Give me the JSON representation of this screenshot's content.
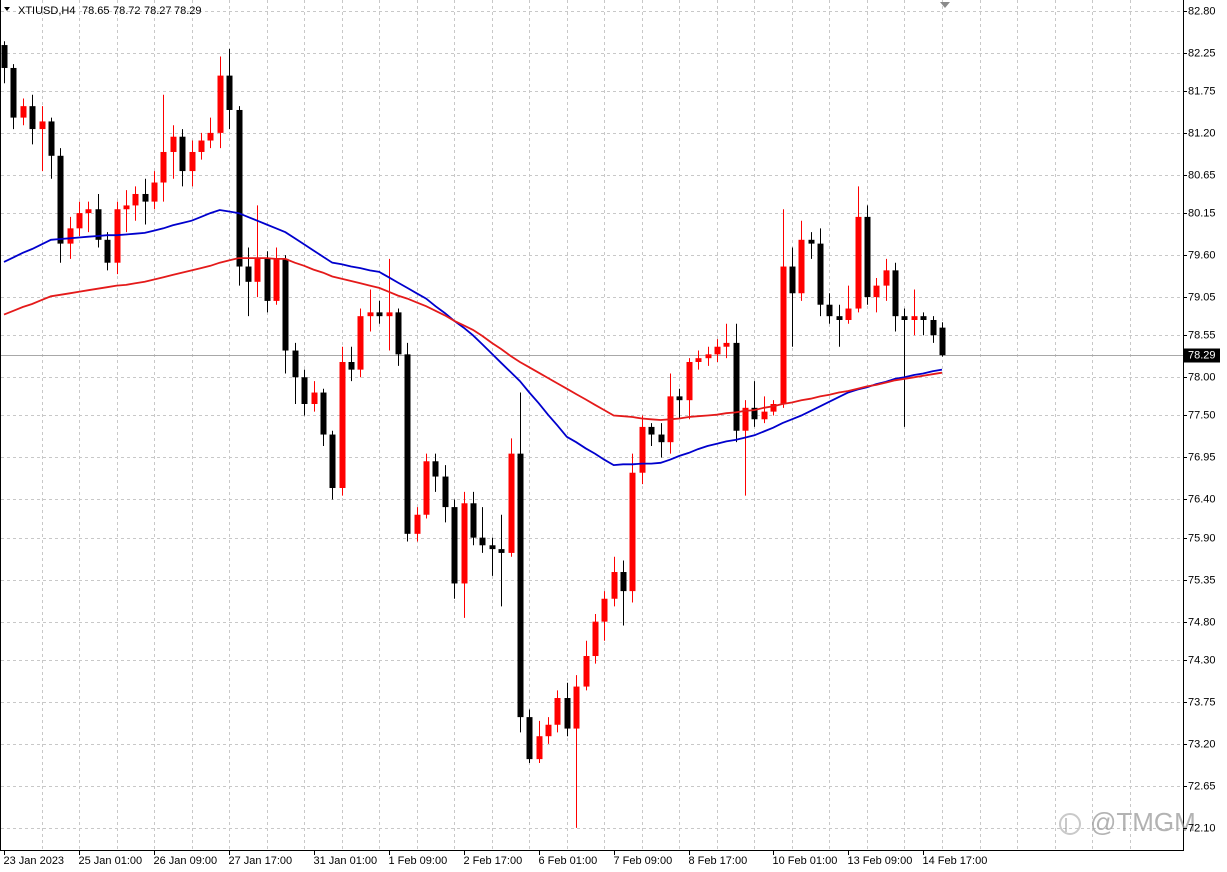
{
  "chart_data": {
    "type": "candlestick",
    "title": "XTIUSD,H4",
    "watermark": "@TMGM",
    "up_color": "#ff0000",
    "down_color": "#000000",
    "grid": true,
    "ylim": [
      71.81,
      82.94
    ],
    "yticks": [
      {
        "value": 82.8,
        "label": "82.80"
      },
      82.25,
      81.75,
      {
        "value": 81.2,
        "label": "81.20"
      },
      80.65,
      80.15,
      {
        "value": 79.6,
        "label": "79.60"
      },
      79.05,
      78.55,
      {
        "value": 78.0,
        "label": "78.00"
      },
      {
        "value": 77.5,
        "label": "77.50"
      },
      76.95,
      {
        "value": 76.4,
        "label": "76.40"
      },
      {
        "value": 75.9,
        "label": "75.90"
      },
      75.35,
      {
        "value": 74.8,
        "label": "74.80"
      },
      {
        "value": 74.3,
        "label": "74.30"
      },
      73.75,
      {
        "value": 73.2,
        "label": "73.20"
      },
      72.65,
      {
        "value": 72.1,
        "label": "72.10"
      }
    ],
    "categories": [
      "23 Jan 2023",
      null,
      null,
      null,
      null,
      null,
      null,
      null,
      "25 Jan 01:00",
      null,
      null,
      null,
      null,
      null,
      null,
      null,
      "26 Jan 09:00",
      null,
      null,
      null,
      null,
      null,
      null,
      null,
      "27 Jan 17:00",
      null,
      null,
      null,
      null,
      null,
      null,
      null,
      null,
      "31 Jan 01:00",
      null,
      null,
      null,
      null,
      null,
      null,
      null,
      "1 Feb 09:00",
      null,
      null,
      null,
      null,
      null,
      null,
      null,
      "2 Feb 17:00",
      null,
      null,
      null,
      null,
      null,
      null,
      null,
      "6 Feb 01:00",
      null,
      null,
      null,
      null,
      null,
      null,
      null,
      "7 Feb 09:00",
      null,
      null,
      null,
      null,
      null,
      null,
      null,
      "8 Feb 17:00",
      null,
      null,
      null,
      null,
      null,
      null,
      null,
      null,
      "10 Feb 01:00",
      null,
      null,
      null,
      null,
      null,
      null,
      null,
      "13 Feb 09:00",
      null,
      null,
      null,
      null,
      null,
      null,
      null,
      "14 Feb 17:00",
      null,
      null
    ],
    "open": [
      82.35,
      82.05,
      81.4,
      81.55,
      81.25,
      81.35,
      80.9,
      79.75,
      79.95,
      80.15,
      80.2,
      79.8,
      79.5,
      80.2,
      80.25,
      80.4,
      80.3,
      80.55,
      80.95,
      81.15,
      80.7,
      80.95,
      81.1,
      81.2,
      81.95,
      81.5,
      79.45,
      79.25,
      79.55,
      79.0,
      79.55,
      78.35,
      78.0,
      77.65,
      77.8,
      77.25,
      76.55,
      78.2,
      78.1,
      78.8,
      78.85,
      78.8,
      78.85,
      78.3,
      75.95,
      76.2,
      76.9,
      76.7,
      76.3,
      75.3,
      76.35,
      75.9,
      75.8,
      75.75,
      75.7,
      77.0,
      73.55,
      73.0,
      73.3,
      73.45,
      73.8,
      73.4,
      73.95,
      74.35,
      74.8,
      75.1,
      75.45,
      75.2,
      76.75,
      77.35,
      77.25,
      77.15,
      77.75,
      77.7,
      78.2,
      78.25,
      78.3,
      78.4,
      78.45,
      77.3,
      77.6,
      77.45,
      77.55,
      77.65,
      79.45,
      79.1,
      79.8,
      79.75,
      78.95,
      78.8,
      78.75,
      78.9,
      80.1,
      79.05,
      79.2,
      79.4,
      78.8,
      78.75,
      78.8,
      78.75,
      78.65
    ],
    "high": [
      82.4,
      82.1,
      81.65,
      81.7,
      81.55,
      81.4,
      81.0,
      80.1,
      80.3,
      80.3,
      80.4,
      79.9,
      80.3,
      80.45,
      80.5,
      80.6,
      80.7,
      81.7,
      81.3,
      81.25,
      81.1,
      81.2,
      81.4,
      82.2,
      82.3,
      81.55,
      79.7,
      80.25,
      79.65,
      79.7,
      79.6,
      78.45,
      78.1,
      77.95,
      77.85,
      77.3,
      78.4,
      78.4,
      78.9,
      79.15,
      79.0,
      79.55,
      78.9,
      78.45,
      76.3,
      77.0,
      77.0,
      76.85,
      76.4,
      76.5,
      76.5,
      76.3,
      75.9,
      76.2,
      77.2,
      77.8,
      73.65,
      73.5,
      73.55,
      73.9,
      74.0,
      74.1,
      74.55,
      74.9,
      75.2,
      75.65,
      75.6,
      77.0,
      77.5,
      77.4,
      77.4,
      78.05,
      77.85,
      78.25,
      78.35,
      78.4,
      78.5,
      78.7,
      78.7,
      77.7,
      77.95,
      77.75,
      77.7,
      80.2,
      79.7,
      80.05,
      79.9,
      79.95,
      79.1,
      78.95,
      79.2,
      80.5,
      80.25,
      79.3,
      79.55,
      79.5,
      78.9,
      79.15,
      78.85,
      78.8,
      78.72
    ],
    "low": [
      81.85,
      81.25,
      81.3,
      81.05,
      80.7,
      80.6,
      79.5,
      79.55,
      79.85,
      79.9,
      79.7,
      79.4,
      79.35,
      79.9,
      80.05,
      80.0,
      80.2,
      80.3,
      80.6,
      80.5,
      80.5,
      80.85,
      81.0,
      81.0,
      81.25,
      79.2,
      78.8,
      79.05,
      78.85,
      78.95,
      78.05,
      77.65,
      77.5,
      77.55,
      77.1,
      76.4,
      76.45,
      77.95,
      78.0,
      78.6,
      78.7,
      78.35,
      78.15,
      75.85,
      75.85,
      76.15,
      76.5,
      76.1,
      75.1,
      74.85,
      75.8,
      75.7,
      75.4,
      75.0,
      75.65,
      73.35,
      72.95,
      72.95,
      73.2,
      73.35,
      73.3,
      72.1,
      73.9,
      74.25,
      74.55,
      75.0,
      74.75,
      75.05,
      76.6,
      77.1,
      76.95,
      77.0,
      77.45,
      77.45,
      78.1,
      78.15,
      78.2,
      78.25,
      77.15,
      76.45,
      77.35,
      77.4,
      77.5,
      77.6,
      78.4,
      79.0,
      79.55,
      78.8,
      78.7,
      78.4,
      78.7,
      78.85,
      78.95,
      78.85,
      79.0,
      78.6,
      77.35,
      78.55,
      78.55,
      78.45,
      78.27
    ],
    "close": [
      82.05,
      81.4,
      81.55,
      81.25,
      81.35,
      80.9,
      79.75,
      79.95,
      80.15,
      80.2,
      79.8,
      79.5,
      80.2,
      80.25,
      80.4,
      80.3,
      80.55,
      80.95,
      81.15,
      80.7,
      80.95,
      81.1,
      81.2,
      81.95,
      81.5,
      79.45,
      79.25,
      79.55,
      79.0,
      79.55,
      78.35,
      78.0,
      77.65,
      77.8,
      77.25,
      76.55,
      78.2,
      78.1,
      78.8,
      78.85,
      78.8,
      78.85,
      78.3,
      75.95,
      76.2,
      76.9,
      76.7,
      76.3,
      75.3,
      76.35,
      75.9,
      75.8,
      75.75,
      75.7,
      77.0,
      73.55,
      73.0,
      73.3,
      73.45,
      73.8,
      73.4,
      73.95,
      74.35,
      74.8,
      75.1,
      75.45,
      75.2,
      76.75,
      77.35,
      77.25,
      77.15,
      77.75,
      77.7,
      78.2,
      78.25,
      78.3,
      78.4,
      78.45,
      77.3,
      77.6,
      77.45,
      77.55,
      77.65,
      79.45,
      79.1,
      79.8,
      79.75,
      78.95,
      78.8,
      78.75,
      78.9,
      80.1,
      79.05,
      79.2,
      79.4,
      78.8,
      78.75,
      78.8,
      78.75,
      78.55,
      78.29
    ],
    "series": [
      {
        "color": "#0000cd",
        "values": [
          79.51,
          79.57,
          79.63,
          79.68,
          79.74,
          79.8,
          79.81,
          79.82,
          79.83,
          79.84,
          79.85,
          79.86,
          79.86,
          79.87,
          79.88,
          79.89,
          79.92,
          79.95,
          79.99,
          80.02,
          80.05,
          80.1,
          80.15,
          80.19,
          80.17,
          80.15,
          80.1,
          80.05,
          80.0,
          79.95,
          79.9,
          79.82,
          79.74,
          79.66,
          79.58,
          79.5,
          79.48,
          79.45,
          79.43,
          79.4,
          79.38,
          79.31,
          79.24,
          79.17,
          79.1,
          79.03,
          78.93,
          78.84,
          78.74,
          78.65,
          78.55,
          78.43,
          78.31,
          78.19,
          78.07,
          77.95,
          77.8,
          77.66,
          77.51,
          77.37,
          77.22,
          77.15,
          77.07,
          77.0,
          76.92,
          76.85,
          76.86,
          76.86,
          76.87,
          76.87,
          76.88,
          76.92,
          76.97,
          77.01,
          77.06,
          77.1,
          77.13,
          77.16,
          77.18,
          77.21,
          77.24,
          77.29,
          77.34,
          77.4,
          77.45,
          77.5,
          77.56,
          77.62,
          77.68,
          77.74,
          77.8,
          77.84,
          77.87,
          77.91,
          77.94,
          77.98,
          78.0,
          78.03,
          78.05,
          78.08,
          78.1
        ]
      },
      {
        "color": "#e41a1a",
        "values": [
          78.82,
          78.87,
          78.92,
          78.96,
          79.01,
          79.06,
          79.08,
          79.1,
          79.12,
          79.14,
          79.16,
          79.18,
          79.2,
          79.21,
          79.23,
          79.25,
          79.28,
          79.31,
          79.34,
          79.37,
          79.4,
          79.43,
          79.46,
          79.5,
          79.53,
          79.56,
          79.56,
          79.56,
          79.56,
          79.55,
          79.55,
          79.5,
          79.46,
          79.41,
          79.37,
          79.32,
          79.29,
          79.26,
          79.23,
          79.2,
          79.17,
          79.12,
          79.07,
          79.03,
          78.98,
          78.93,
          78.87,
          78.81,
          78.74,
          78.68,
          78.62,
          78.54,
          78.45,
          78.37,
          78.28,
          78.2,
          78.13,
          78.06,
          77.99,
          77.92,
          77.85,
          77.78,
          77.71,
          77.64,
          77.57,
          77.5,
          77.49,
          77.48,
          77.46,
          77.45,
          77.44,
          77.45,
          77.46,
          77.48,
          77.49,
          77.5,
          77.51,
          77.53,
          77.54,
          77.56,
          77.57,
          77.6,
          77.62,
          77.65,
          77.67,
          77.7,
          77.72,
          77.75,
          77.77,
          77.8,
          77.82,
          77.85,
          77.88,
          77.9,
          77.93,
          77.96,
          77.98,
          78.0,
          78.02,
          78.04,
          78.06
        ]
      }
    ]
  }
}
